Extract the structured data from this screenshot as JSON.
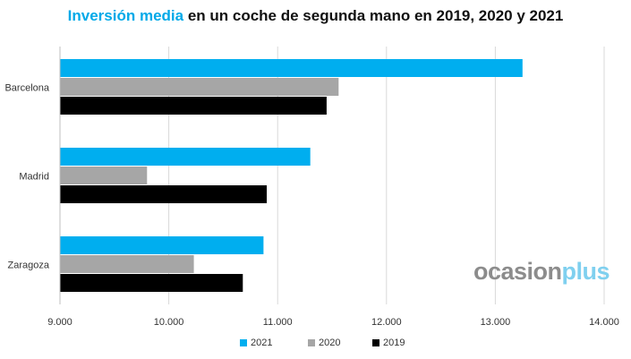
{
  "title": {
    "highlight": "Inversión media",
    "rest": " en un coche de segunda mano en 2019, 2020 y 2021"
  },
  "watermark": {
    "part1": "ocasion",
    "part2": "plus"
  },
  "colors": {
    "2021": "#00aeef",
    "2020": "#a6a6a6",
    "2019": "#000000",
    "grid": "#d9d9d9",
    "title_accent": "#00a9e8"
  },
  "chart_data": {
    "type": "bar",
    "orientation": "horizontal",
    "title": "Inversión media en un coche de segunda mano en 2019, 2020 y 2021",
    "categories": [
      "Barcelona",
      "Madrid",
      "Zaragoza"
    ],
    "series": [
      {
        "name": "2021",
        "values": [
          13250,
          11300,
          10870
        ]
      },
      {
        "name": "2020",
        "values": [
          11560,
          9800,
          10230
        ]
      },
      {
        "name": "2019",
        "values": [
          11450,
          10900,
          10680
        ]
      }
    ],
    "xlim": [
      9000,
      14000
    ],
    "ticks": [
      "9.000",
      "10.000",
      "11.000",
      "12.000",
      "13.000",
      "14.000"
    ],
    "tick_values": [
      9000,
      10000,
      11000,
      12000,
      13000,
      14000
    ],
    "grid": true,
    "legend_position": "bottom"
  },
  "legend": [
    {
      "label": "2021",
      "color": "#00aeef"
    },
    {
      "label": "2020",
      "color": "#a6a6a6"
    },
    {
      "label": "2019",
      "color": "#000000"
    }
  ]
}
